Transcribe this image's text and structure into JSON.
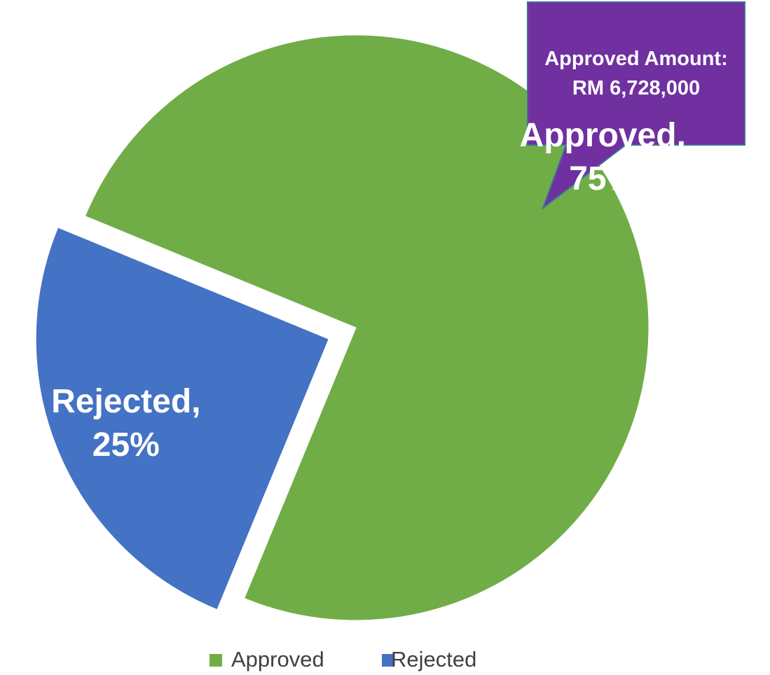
{
  "chart_data": {
    "type": "pie",
    "categories": [
      "Approved",
      "Rejected"
    ],
    "values": [
      75,
      25
    ],
    "value_labels": [
      "Approved, 75%",
      "Rejected, 25%"
    ],
    "colors": [
      "#70ad47",
      "#4472c4"
    ],
    "annotation": "Approved Amount: RM 6,728,000",
    "legend": "bottom"
  }
}
